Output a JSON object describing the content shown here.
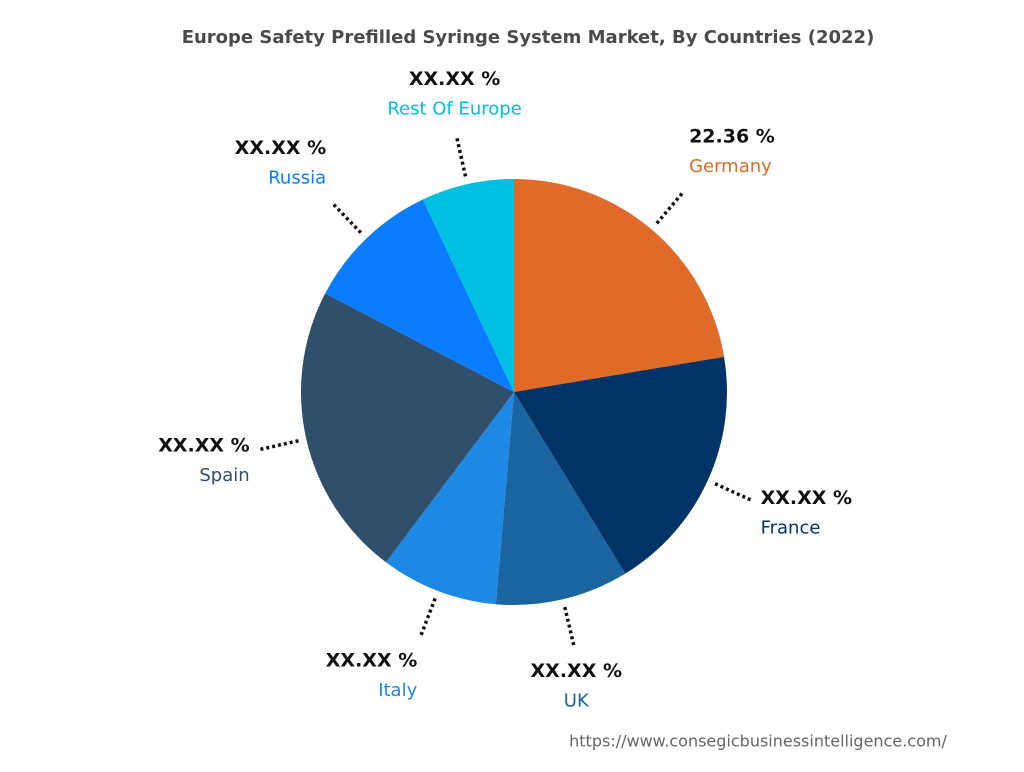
{
  "chart_data": {
    "type": "pie",
    "title": "Europe Safety Prefilled Syringe System Market, By Countries (2022)",
    "categories": [
      "Germany",
      "France",
      "UK",
      "Italy",
      "Spain",
      "Russia",
      "Rest Of Europe"
    ],
    "values": [
      22.36,
      18.9,
      10.1,
      8.9,
      22.4,
      10.3,
      7.04
    ],
    "value_labels": [
      "22.36 %",
      "XX.XX %",
      "XX.XX %",
      "XX.XX %",
      "XX.XX %",
      "XX.XX %",
      "XX.XX %"
    ],
    "colors": [
      "#e06a28",
      "#003366",
      "#1a64a0",
      "#1e88e5",
      "#304f6a",
      "#0a7cff",
      "#00bfe0"
    ],
    "source": "https://www.consegicbusinessintelligence.com/"
  }
}
